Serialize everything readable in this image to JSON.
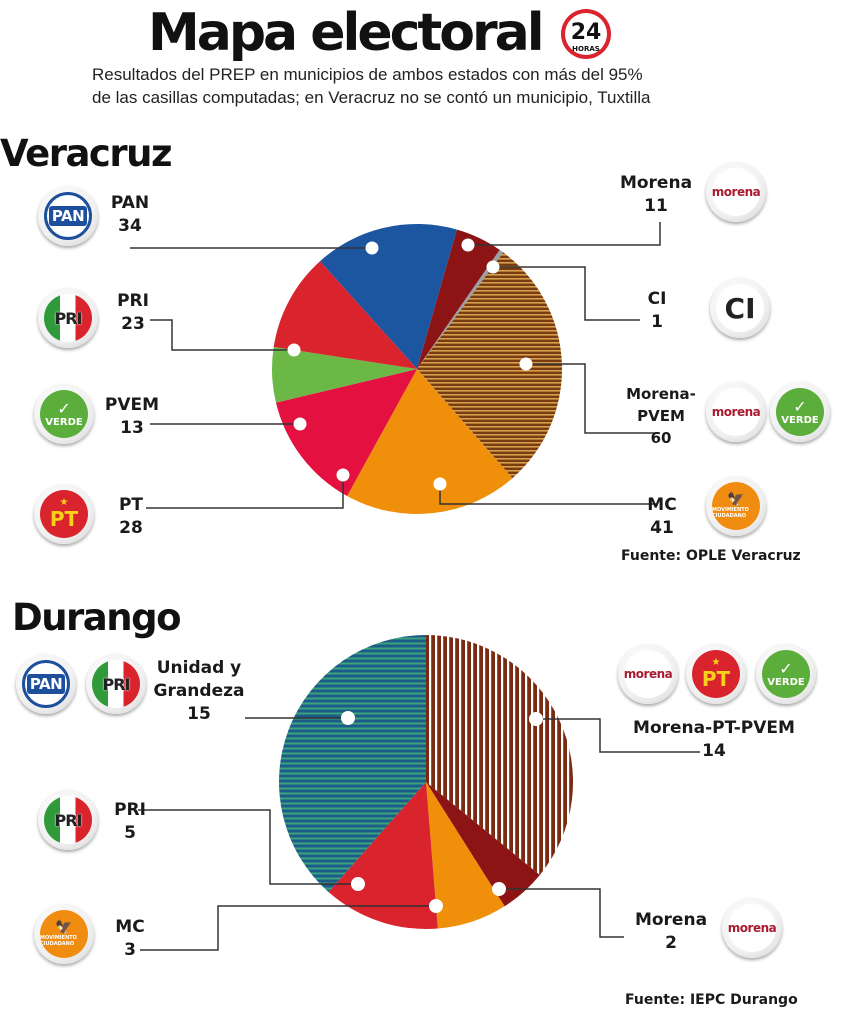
{
  "header": {
    "title": "Mapa electoral",
    "logo_text": "24",
    "logo_sub": "HORAS",
    "subtitle_line1": "Resultados del PREP en municipios de ambos estados con más del 95%",
    "subtitle_line2": "de las casillas computadas; en Veracruz no se contó un municipio, Tuxtilla"
  },
  "colors": {
    "pan": "#1d56a0",
    "pri": "#d9232d",
    "pvem": "#6bb847",
    "pt": "#e4103f",
    "morena": "#8c1414",
    "ci": "#9aa0a6",
    "mc": "#f0900a",
    "morena_pvem_base": "#7a3a12",
    "morena_pvem_stripe": "#d4a24a",
    "unidad_base": "#1d5b8a",
    "unidad_stripe": "#3aa37a",
    "morena_pt_pvem_base": "#7b2a12",
    "morena_pt_pvem_stripe": "#ffffff"
  },
  "chart_data": [
    {
      "type": "pie",
      "title": "Veracruz",
      "source": "Fuente: OPLE Veracruz",
      "slices": [
        {
          "key": "pan",
          "label": "PAN",
          "value": 34,
          "logos": [
            "pan"
          ]
        },
        {
          "key": "morena",
          "label": "Morena",
          "value": 11,
          "logos": [
            "morena"
          ]
        },
        {
          "key": "ci",
          "label": "CI",
          "value": 1,
          "logos": [
            "ci"
          ]
        },
        {
          "key": "morena_pvem",
          "label": "Morena-PVEM",
          "label_line1": "Morena-",
          "label_line2": "PVEM",
          "value": 60,
          "logos": [
            "morena",
            "pvem"
          ]
        },
        {
          "key": "mc",
          "label": "MC",
          "value": 41,
          "logos": [
            "mc"
          ]
        },
        {
          "key": "pt",
          "label": "PT",
          "value": 28,
          "logos": [
            "pt"
          ]
        },
        {
          "key": "pvem",
          "label": "PVEM",
          "value": 13,
          "logos": [
            "pvem"
          ]
        },
        {
          "key": "pri",
          "label": "PRI",
          "value": 23,
          "logos": [
            "pri"
          ]
        }
      ]
    },
    {
      "type": "pie",
      "title": "Durango",
      "source": "Fuente: IEPC Durango",
      "slices": [
        {
          "key": "morena_pt_pvem",
          "label": "Morena-PT-PVEM",
          "value": 14,
          "logos": [
            "morena",
            "pt",
            "pvem"
          ]
        },
        {
          "key": "morena",
          "label": "Morena",
          "value": 2,
          "logos": [
            "morena"
          ]
        },
        {
          "key": "mc",
          "label": "MC",
          "value": 3,
          "logos": [
            "mc"
          ]
        },
        {
          "key": "pri",
          "label": "PRI",
          "value": 5,
          "logos": [
            "pri"
          ]
        },
        {
          "key": "unidad",
          "label": "Unidad y Grandeza",
          "label_line1": "Unidad y",
          "label_line2": "Grandeza",
          "value": 15,
          "logos": [
            "pan",
            "pri"
          ]
        }
      ]
    }
  ],
  "logos": {
    "pan": "PAN",
    "pri": "PRI",
    "pvem": "VERDE",
    "pt": "PT",
    "morena": "morena",
    "ci": "CI",
    "mc": "MOVIMIENTO CIUDADANO"
  }
}
